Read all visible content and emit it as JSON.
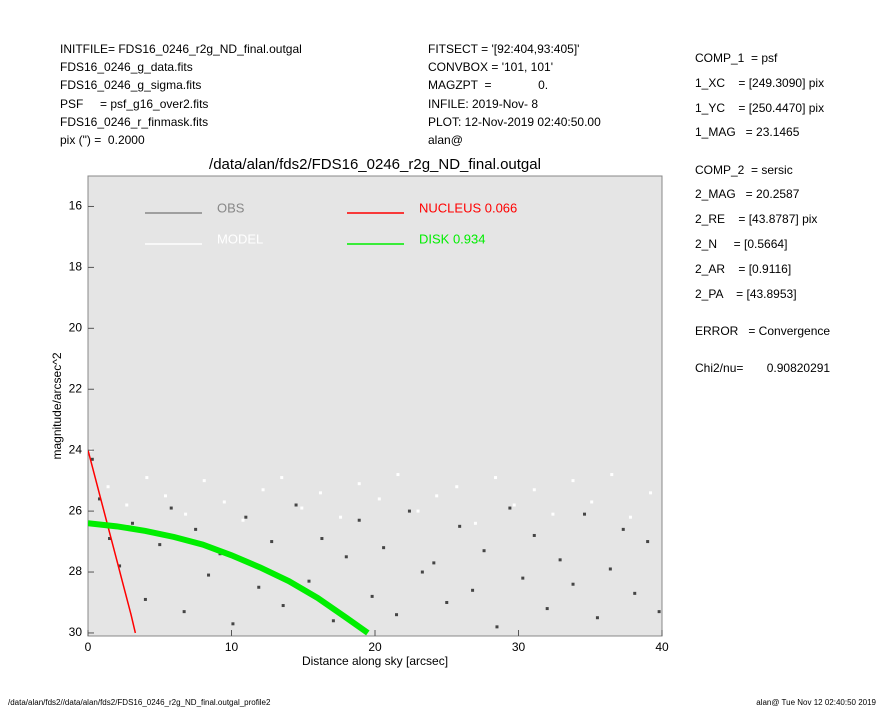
{
  "header": {
    "left": [
      "INITFILE= FDS16_0246_r2g_ND_final.outgal",
      "FDS16_0246_g_data.fits",
      "FDS16_0246_g_sigma.fits",
      "PSF     = psf_g16_over2.fits",
      "FDS16_0246_r_finmask.fits",
      "pix (\") =  0.2000"
    ],
    "middle": [
      "FITSECT = '[92:404,93:405]'",
      "CONVBOX = '101, 101'",
      "MAGZPT  =              0.",
      "INFILE: 2019-Nov- 8",
      "PLOT: 12-Nov-2019 02:40:50.00",
      "alan@"
    ],
    "right": [
      "COMP_1  = psf",
      "1_XC    = [249.3090] pix",
      "1_YC    = [250.4470] pix",
      "1_MAG   = 23.1465",
      "COMP_2  = sersic",
      "2_MAG   = 20.2587",
      "2_RE    = [43.8787] pix",
      "2_N     = [0.5664]",
      "2_AR    = [0.9116]",
      "2_PA    = [43.8953]",
      "ERROR   = Convergence",
      "Chi2/nu=       0.90820291"
    ]
  },
  "footer": {
    "left": "/data/alan/fds2//data/alan/fds2/FDS16_0246_r2g_ND_final.outgal_profile2",
    "right": "alan@  Tue Nov 12 02:40:50 2019"
  },
  "chart_data": {
    "type": "scatter",
    "title": "/data/alan/fds2/FDS16_0246_r2g_ND_final.outgal",
    "x_label": "Distance along sky [arcsec]",
    "y_label": "magnitude/arcsec^2",
    "xlim": [
      0,
      40
    ],
    "xticks": [
      0,
      10,
      20,
      30,
      40
    ],
    "ylim": [
      30.1,
      15
    ],
    "yticks": [
      16,
      18,
      20,
      22,
      24,
      26,
      28,
      30
    ],
    "legend": "upper-left",
    "series": [
      {
        "name": "OBS",
        "color": "#454545",
        "mode": "markers",
        "x": [
          0.3,
          0.8,
          1.5,
          2.2,
          3.1,
          4,
          5,
          5.8,
          6.7,
          7.5,
          8.4,
          9.2,
          10.1,
          11,
          11.9,
          12.8,
          13.6,
          14.5,
          15.4,
          16.3,
          17.1,
          18,
          18.9,
          19.8,
          20.6,
          21.5,
          22.4,
          23.3,
          24.1,
          25,
          25.9,
          26.8,
          27.6,
          28.5,
          29.4,
          30.3,
          31.1,
          32,
          32.9,
          33.8,
          34.6,
          35.5,
          36.4,
          37.3,
          38.1,
          39,
          39.8
        ],
        "values": [
          24.3,
          25.6,
          26.9,
          27.8,
          26.4,
          28.9,
          27.1,
          25.9,
          29.3,
          26.6,
          28.1,
          27.4,
          29.7,
          26.2,
          28.5,
          27.0,
          29.1,
          25.8,
          28.3,
          26.9,
          29.6,
          27.5,
          26.3,
          28.8,
          27.2,
          29.4,
          26.0,
          28.0,
          27.7,
          29.0,
          26.5,
          28.6,
          27.3,
          29.8,
          25.9,
          28.2,
          26.8,
          29.2,
          27.6,
          28.4,
          26.1,
          29.5,
          27.9,
          26.6,
          28.7,
          27.0,
          29.3
        ]
      },
      {
        "name": "MODEL",
        "color": "#ffffff",
        "mode": "markers",
        "x": [
          0.2,
          1.4,
          2.7,
          4.1,
          5.4,
          6.8,
          8.1,
          9.5,
          10.8,
          12.2,
          13.5,
          14.9,
          16.2,
          17.6,
          18.9,
          20.3,
          21.6,
          23,
          24.3,
          25.7,
          27,
          28.4,
          29.7,
          31.1,
          32.4,
          33.8,
          35.1,
          36.5,
          37.8,
          39.2
        ],
        "values": [
          24.0,
          25.2,
          25.8,
          24.9,
          25.5,
          26.1,
          25.0,
          25.7,
          26.3,
          25.3,
          24.9,
          25.9,
          25.4,
          26.2,
          25.1,
          25.6,
          24.8,
          26.0,
          25.5,
          25.2,
          26.4,
          24.9,
          25.8,
          25.3,
          26.1,
          25.0,
          25.7,
          24.8,
          26.2,
          25.4
        ]
      },
      {
        "name": "NUCLEUS  0.066",
        "color": "#ff0000",
        "mode": "line",
        "x": [
          0,
          0.5,
          1,
          1.5,
          2,
          2.5,
          3,
          3.3
        ],
        "values": [
          24,
          24.9,
          25.8,
          26.7,
          27.6,
          28.5,
          29.4,
          30
        ]
      },
      {
        "name": "DISK  0.934",
        "color": "#00ee00",
        "mode": "band",
        "x": [
          0,
          2,
          4,
          6,
          8,
          10,
          12,
          14,
          16,
          18,
          19.5
        ],
        "values": [
          26.4,
          26.5,
          26.65,
          26.85,
          27.1,
          27.45,
          27.85,
          28.3,
          28.85,
          29.5,
          30
        ]
      }
    ]
  }
}
